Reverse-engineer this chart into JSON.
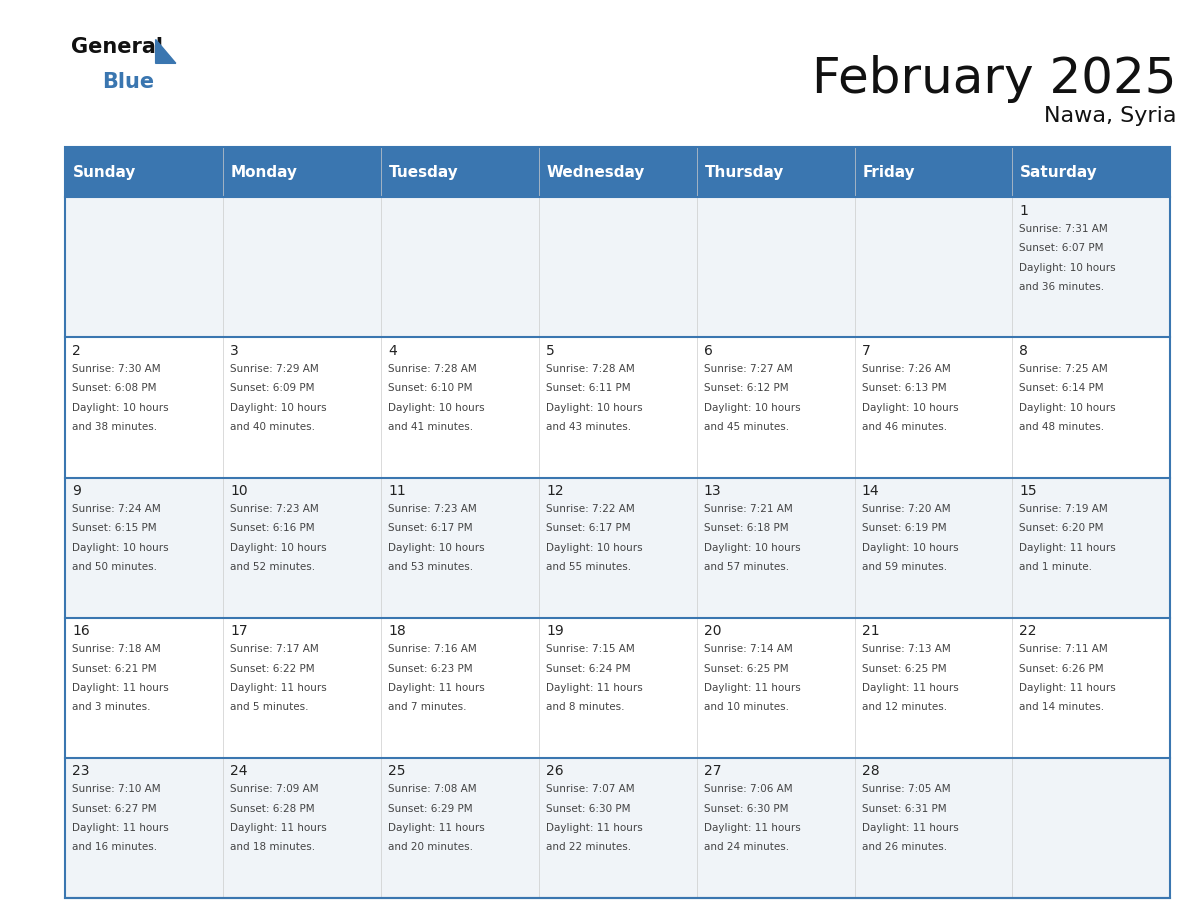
{
  "title": "February 2025",
  "subtitle": "Nawa, Syria",
  "header_color": "#3a76b0",
  "header_text_color": "#ffffff",
  "days_of_week": [
    "Sunday",
    "Monday",
    "Tuesday",
    "Wednesday",
    "Thursday",
    "Friday",
    "Saturday"
  ],
  "grid_line_color": "#3a76b0",
  "day_number_color": "#222222",
  "day_info_color": "#444444",
  "background_color": "#ffffff",
  "calendar_data": [
    [
      null,
      null,
      null,
      null,
      null,
      null,
      {
        "day": 1,
        "sunrise": "7:31 AM",
        "sunset": "6:07 PM",
        "daylight": "10 hours and 36 minutes."
      }
    ],
    [
      {
        "day": 2,
        "sunrise": "7:30 AM",
        "sunset": "6:08 PM",
        "daylight": "10 hours and 38 minutes."
      },
      {
        "day": 3,
        "sunrise": "7:29 AM",
        "sunset": "6:09 PM",
        "daylight": "10 hours and 40 minutes."
      },
      {
        "day": 4,
        "sunrise": "7:28 AM",
        "sunset": "6:10 PM",
        "daylight": "10 hours and 41 minutes."
      },
      {
        "day": 5,
        "sunrise": "7:28 AM",
        "sunset": "6:11 PM",
        "daylight": "10 hours and 43 minutes."
      },
      {
        "day": 6,
        "sunrise": "7:27 AM",
        "sunset": "6:12 PM",
        "daylight": "10 hours and 45 minutes."
      },
      {
        "day": 7,
        "sunrise": "7:26 AM",
        "sunset": "6:13 PM",
        "daylight": "10 hours and 46 minutes."
      },
      {
        "day": 8,
        "sunrise": "7:25 AM",
        "sunset": "6:14 PM",
        "daylight": "10 hours and 48 minutes."
      }
    ],
    [
      {
        "day": 9,
        "sunrise": "7:24 AM",
        "sunset": "6:15 PM",
        "daylight": "10 hours and 50 minutes."
      },
      {
        "day": 10,
        "sunrise": "7:23 AM",
        "sunset": "6:16 PM",
        "daylight": "10 hours and 52 minutes."
      },
      {
        "day": 11,
        "sunrise": "7:23 AM",
        "sunset": "6:17 PM",
        "daylight": "10 hours and 53 minutes."
      },
      {
        "day": 12,
        "sunrise": "7:22 AM",
        "sunset": "6:17 PM",
        "daylight": "10 hours and 55 minutes."
      },
      {
        "day": 13,
        "sunrise": "7:21 AM",
        "sunset": "6:18 PM",
        "daylight": "10 hours and 57 minutes."
      },
      {
        "day": 14,
        "sunrise": "7:20 AM",
        "sunset": "6:19 PM",
        "daylight": "10 hours and 59 minutes."
      },
      {
        "day": 15,
        "sunrise": "7:19 AM",
        "sunset": "6:20 PM",
        "daylight": "11 hours and 1 minute."
      }
    ],
    [
      {
        "day": 16,
        "sunrise": "7:18 AM",
        "sunset": "6:21 PM",
        "daylight": "11 hours and 3 minutes."
      },
      {
        "day": 17,
        "sunrise": "7:17 AM",
        "sunset": "6:22 PM",
        "daylight": "11 hours and 5 minutes."
      },
      {
        "day": 18,
        "sunrise": "7:16 AM",
        "sunset": "6:23 PM",
        "daylight": "11 hours and 7 minutes."
      },
      {
        "day": 19,
        "sunrise": "7:15 AM",
        "sunset": "6:24 PM",
        "daylight": "11 hours and 8 minutes."
      },
      {
        "day": 20,
        "sunrise": "7:14 AM",
        "sunset": "6:25 PM",
        "daylight": "11 hours and 10 minutes."
      },
      {
        "day": 21,
        "sunrise": "7:13 AM",
        "sunset": "6:25 PM",
        "daylight": "11 hours and 12 minutes."
      },
      {
        "day": 22,
        "sunrise": "7:11 AM",
        "sunset": "6:26 PM",
        "daylight": "11 hours and 14 minutes."
      }
    ],
    [
      {
        "day": 23,
        "sunrise": "7:10 AM",
        "sunset": "6:27 PM",
        "daylight": "11 hours and 16 minutes."
      },
      {
        "day": 24,
        "sunrise": "7:09 AM",
        "sunset": "6:28 PM",
        "daylight": "11 hours and 18 minutes."
      },
      {
        "day": 25,
        "sunrise": "7:08 AM",
        "sunset": "6:29 PM",
        "daylight": "11 hours and 20 minutes."
      },
      {
        "day": 26,
        "sunrise": "7:07 AM",
        "sunset": "6:30 PM",
        "daylight": "11 hours and 22 minutes."
      },
      {
        "day": 27,
        "sunrise": "7:06 AM",
        "sunset": "6:30 PM",
        "daylight": "11 hours and 24 minutes."
      },
      {
        "day": 28,
        "sunrise": "7:05 AM",
        "sunset": "6:31 PM",
        "daylight": "11 hours and 26 minutes."
      },
      null
    ]
  ]
}
